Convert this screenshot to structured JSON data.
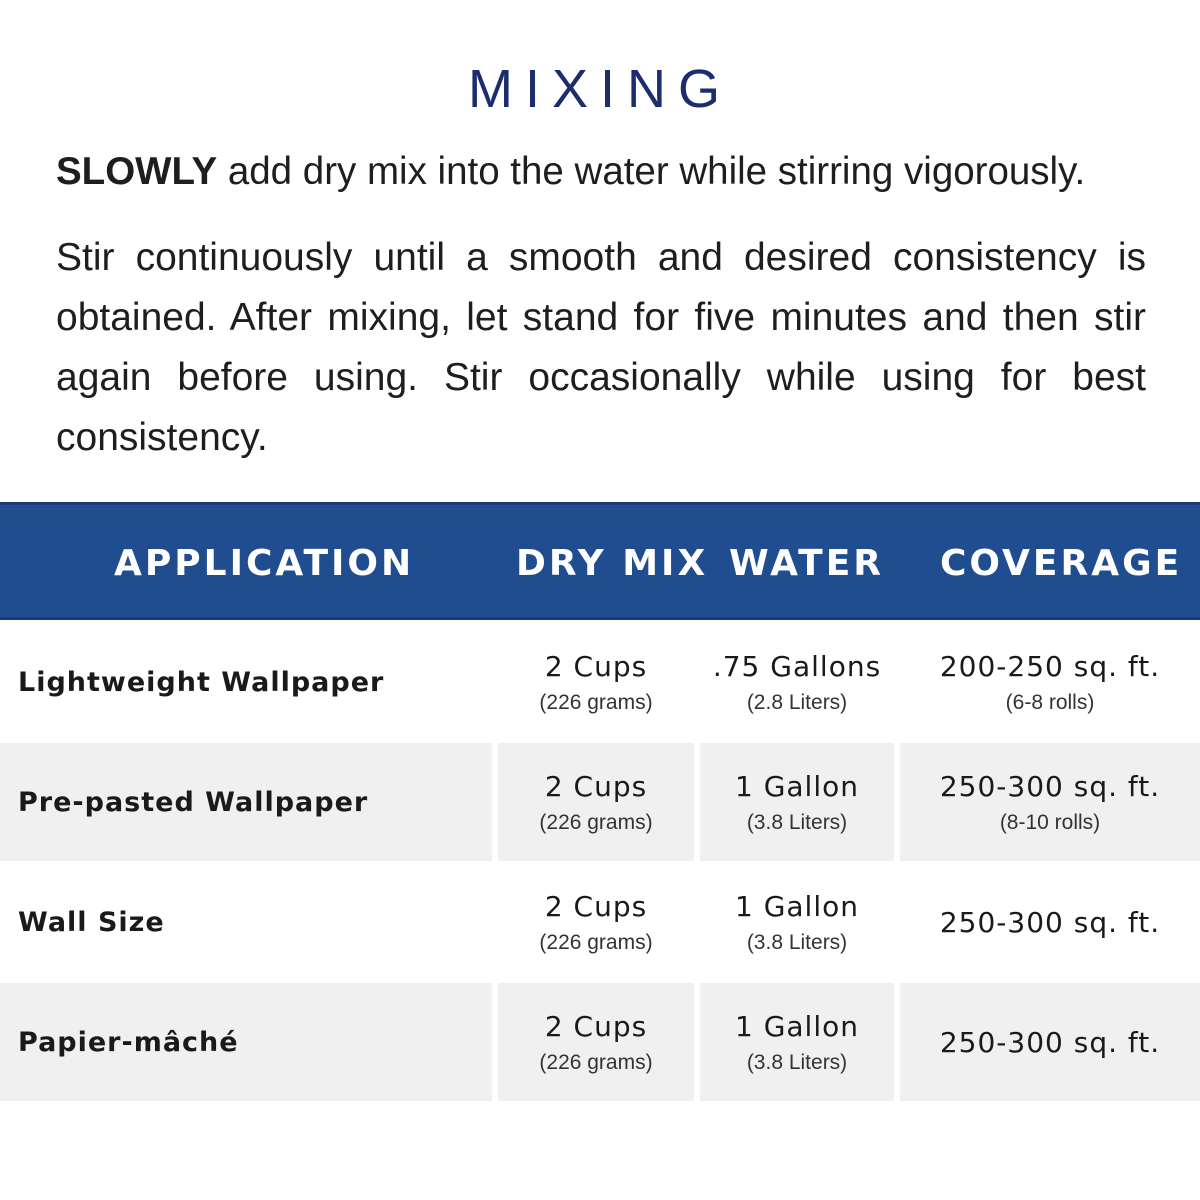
{
  "title": "MIXING",
  "intro": {
    "emphasis": "SLOWLY",
    "rest": " add dry mix into the water while stirring vigorously."
  },
  "instructions": "Stir continuously until a smooth and desired consistency is obtained. After mixing, let stand for five minutes and then stir again before using. Stir occasionally while using for best consistency.",
  "table": {
    "headers": [
      "APPLICATION",
      "DRY MIX",
      "WATER",
      "COVERAGE"
    ],
    "header_color": "#1f4d8f",
    "rows": [
      {
        "application": "Lightweight Wallpaper",
        "dry_mix": "2 Cups",
        "dry_mix_sub": "(226 grams)",
        "water": ".75 Gallons",
        "water_sub": "(2.8 Liters)",
        "coverage": "200-250 sq. ft.",
        "coverage_sub": "(6-8 rolls)"
      },
      {
        "application": "Pre-pasted Wallpaper",
        "dry_mix": "2 Cups",
        "dry_mix_sub": "(226 grams)",
        "water": "1 Gallon",
        "water_sub": "(3.8 Liters)",
        "coverage": "250-300 sq. ft.",
        "coverage_sub": "(8-10 rolls)"
      },
      {
        "application": "Wall Size",
        "dry_mix": "2 Cups",
        "dry_mix_sub": "(226 grams)",
        "water": "1 Gallon",
        "water_sub": "(3.8 Liters)",
        "coverage": "250-300 sq. ft."
      },
      {
        "application": "Papier-mâché",
        "dry_mix": "2 Cups",
        "dry_mix_sub": "(226 grams)",
        "water": "1 Gallon",
        "water_sub": "(3.8 Liters)",
        "coverage": "250-300 sq. ft."
      }
    ]
  }
}
